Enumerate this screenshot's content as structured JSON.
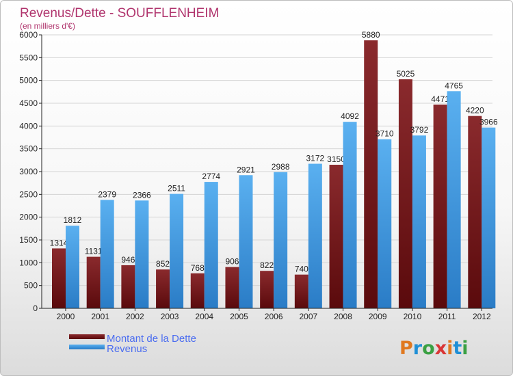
{
  "chart_data": {
    "type": "bar",
    "title": "Revenus/Dette - SOUFFLENHEIM",
    "subtitle": "(en milliers d'€)",
    "categories": [
      "2000",
      "2001",
      "2002",
      "2003",
      "2004",
      "2005",
      "2006",
      "2007",
      "2008",
      "2009",
      "2010",
      "2011",
      "2012"
    ],
    "series": [
      {
        "name": "Montant de la Dette",
        "color": "#7a1a1e",
        "values": [
          1314,
          1131,
          946,
          852,
          768,
          906,
          822,
          740,
          3150,
          5880,
          5025,
          4471,
          4220
        ],
        "labels": [
          "1314",
          "1131",
          "946",
          "852",
          "768",
          "906",
          "822",
          "740",
          "3150",
          "5880",
          "5025",
          "4471",
          "4220"
        ]
      },
      {
        "name": "Revenus",
        "color": "#4aa6e8",
        "values": [
          1812,
          2379,
          2366,
          2511,
          2774,
          2921,
          2988,
          3172,
          4092,
          3710,
          3792,
          4765,
          3966
        ],
        "labels": [
          "1812",
          "2379",
          "2366",
          "2511",
          "2774",
          "2921",
          "2988",
          "3172",
          "4092",
          "3710",
          "3792",
          "4765",
          "3966"
        ]
      }
    ],
    "ylim": [
      0,
      6000
    ],
    "yticks": [
      "0",
      "500",
      "1000",
      "1500",
      "2000",
      "2500",
      "3000",
      "3500",
      "4000",
      "4500",
      "5000",
      "5500",
      "6000"
    ],
    "grid": true
  },
  "legend": {
    "debt_label": "Montant de la Dette",
    "revenue_label": "Revenus"
  },
  "logo": {
    "text": "Proxiti",
    "letter_colors": [
      "#e0781f",
      "#1f8fd6",
      "#3aa043",
      "#d93636",
      "#e0781f",
      "#1f8fd6",
      "#3aa043"
    ]
  }
}
